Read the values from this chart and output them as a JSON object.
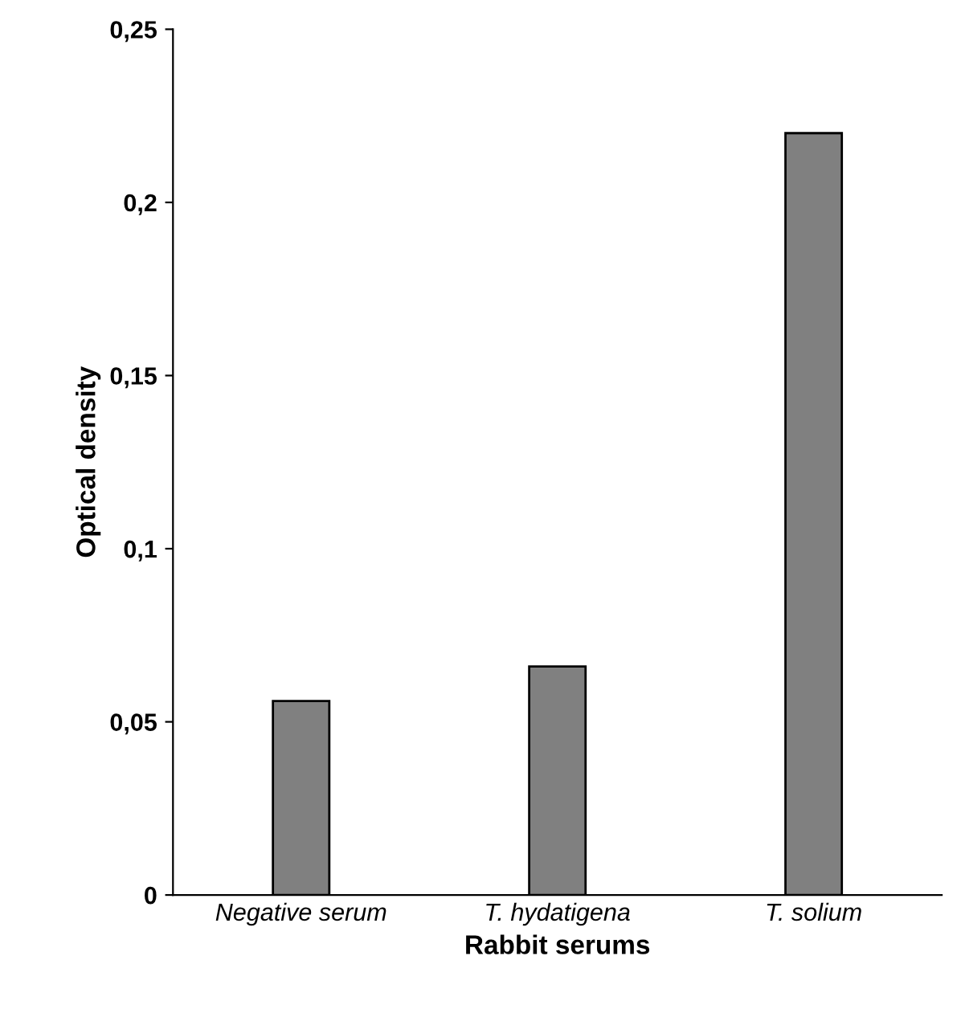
{
  "chart_data": {
    "type": "bar",
    "categories": [
      "Negative serum",
      "T. hydatigena",
      "T. solium"
    ],
    "values": [
      0.056,
      0.066,
      0.22
    ],
    "color": "#808080",
    "xlabel": "Rabbit serums",
    "ylabel": "Optical density",
    "ylim": [
      0,
      0.25
    ],
    "yticks": [
      {
        "value": 0,
        "label": "0"
      },
      {
        "value": 0.05,
        "label": "0,05"
      },
      {
        "value": 0.1,
        "label": "0,1"
      },
      {
        "value": 0.15,
        "label": "0,15"
      },
      {
        "value": 0.2,
        "label": "0,2"
      },
      {
        "value": 0.25,
        "label": "0,25"
      }
    ],
    "grid": false,
    "legend": false
  }
}
